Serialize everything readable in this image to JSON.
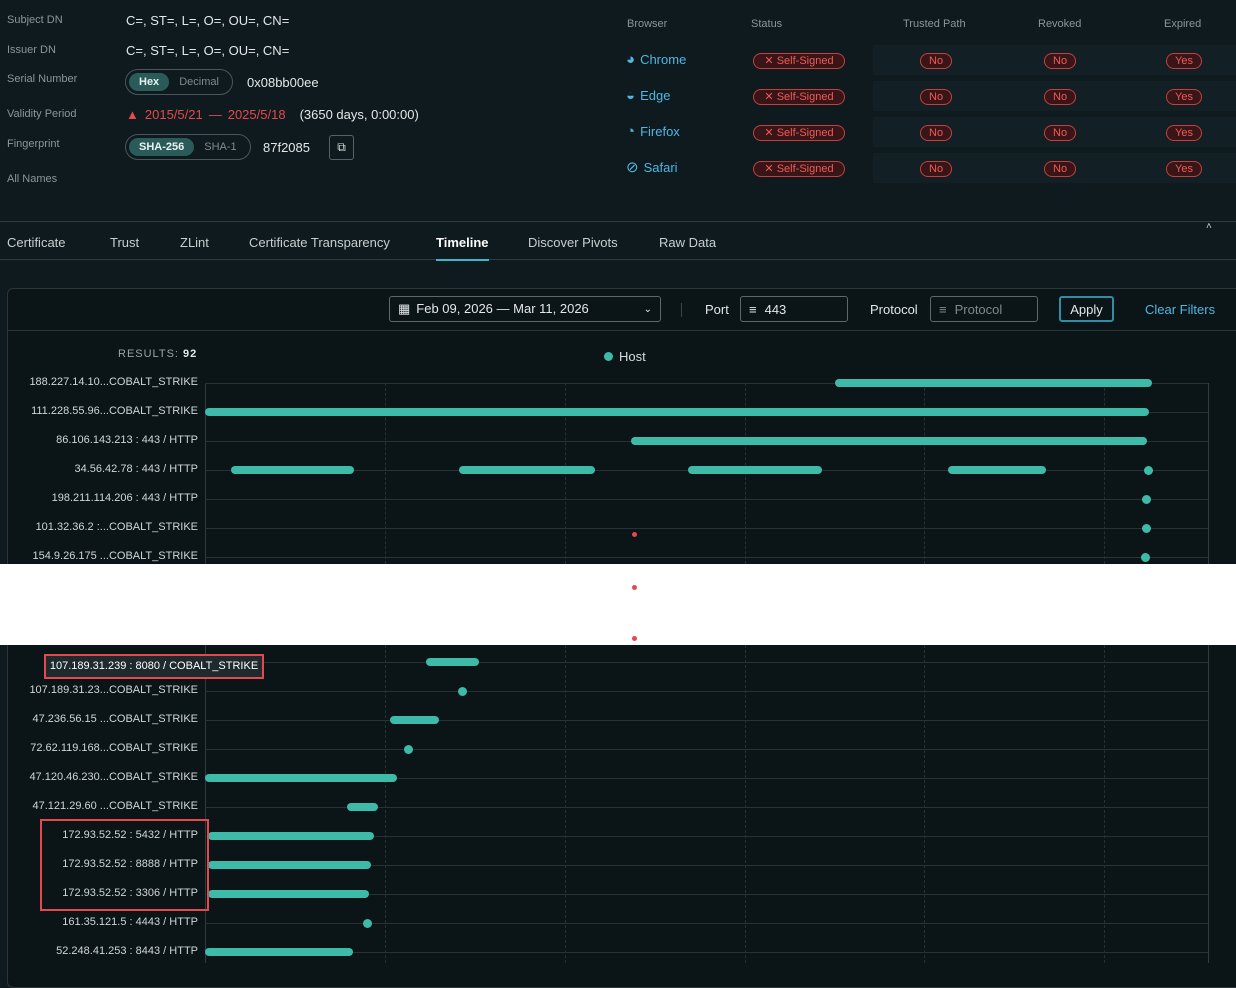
{
  "certificate": {
    "fields": [
      {
        "label": "Subject DN",
        "value": "C=, ST=, L=, O=, OU=, CN="
      },
      {
        "label": "Issuer DN",
        "value": "C=, ST=, L=, O=, OU=, CN="
      },
      {
        "label": "Serial Number",
        "value": "0x08bb00ee",
        "toggle": [
          "Hex",
          "Decimal"
        ],
        "selected": "Hex"
      },
      {
        "label": "Validity Period",
        "start": "2015/5/21",
        "separator": "—",
        "end": "2025/5/18",
        "duration": "(3650 days, 0:00:00)",
        "icon": "warning-triangle-icon"
      },
      {
        "label": "Fingerprint",
        "value": "87f2085",
        "toggle": [
          "SHA-256",
          "SHA-1"
        ],
        "selected": "SHA-256",
        "copy_icon": "copy-icon"
      },
      {
        "label": "All Names"
      }
    ]
  },
  "trust": {
    "headers": [
      "Browser",
      "Status",
      "Trusted Path",
      "Revoked",
      "Expired"
    ],
    "rows": [
      {
        "browser": "Chrome",
        "icon": "chrome-icon",
        "status": "Self-Signed",
        "trusted_path": "No",
        "revoked": "No",
        "expired": "Yes"
      },
      {
        "browser": "Edge",
        "icon": "edge-icon",
        "status": "Self-Signed",
        "trusted_path": "No",
        "revoked": "No",
        "expired": "Yes"
      },
      {
        "browser": "Firefox",
        "icon": "firefox-icon",
        "status": "Self-Signed",
        "trusted_path": "No",
        "revoked": "No",
        "expired": "Yes"
      },
      {
        "browser": "Safari",
        "icon": "safari-icon",
        "status": "Self-Signed",
        "trusted_path": "No",
        "revoked": "No",
        "expired": "Yes"
      }
    ],
    "status_icon": "✕"
  },
  "tabs": [
    {
      "label": "Certificate"
    },
    {
      "label": "Trust"
    },
    {
      "label": "ZLint"
    },
    {
      "label": "Certificate Transparency"
    },
    {
      "label": "Timeline",
      "active": true
    },
    {
      "label": "Discover Pivots"
    },
    {
      "label": "Raw Data"
    }
  ],
  "filters": {
    "date_range": "Feb 09, 2026 — Mar 11, 2026",
    "port_label": "Port",
    "port_value": "443",
    "protocol_label": "Protocol",
    "protocol_placeholder": "Protocol",
    "apply": "Apply",
    "clear": "Clear Filters"
  },
  "results": {
    "label": "RESULTS:",
    "count": "92"
  },
  "colors": {
    "accent": "#3dbaa8",
    "danger": "#e5484d",
    "link": "#4fb7e3"
  },
  "chart_data": {
    "type": "timeline",
    "legend": [
      {
        "name": "Host",
        "color": "#3dbaa8"
      }
    ],
    "legend_placement": "top-center",
    "x_range": [
      "2026-02-09T00:00",
      "2026-03-11T00:00"
    ],
    "grid": true,
    "tooltip": "107.189.31.239 : 8080 / COBALT_STRIKE",
    "markers": [
      {
        "t": "2026-02-21T20:00",
        "color": "#e5484d"
      }
    ],
    "rows_top": [
      {
        "label": "188.227.14.10...COBALT_STRIKE",
        "spans": [
          [
            "2026-02-27T20:00",
            "2026-03-09T08:00"
          ]
        ]
      },
      {
        "label": "111.228.55.96...COBALT_STRIKE",
        "spans": [
          [
            "2026-02-09T00:00",
            "2026-03-09T06:00"
          ]
        ]
      },
      {
        "label": "86.106.143.213 : 443 / HTTP",
        "spans": [
          [
            "2026-02-21T18:00",
            "2026-03-09T04:00"
          ]
        ]
      },
      {
        "label": "34.56.42.78 : 443 / HTTP",
        "spans": [
          [
            "2026-02-09T19:00",
            "2026-02-13T11:00"
          ],
          [
            "2026-02-16T14:00",
            "2026-02-20T16:00"
          ],
          [
            "2026-02-23T11:00",
            "2026-02-27T11:00"
          ],
          [
            "2026-03-03T05:30",
            "2026-03-06T04:00"
          ],
          [
            "2026-03-09T05:00",
            "2026-03-09T05:00"
          ]
        ]
      },
      {
        "label": "198.211.114.206 : 443 / HTTP",
        "spans": [
          [
            "2026-03-09T04:00",
            "2026-03-09T04:00"
          ]
        ]
      },
      {
        "label": "101.32.36.2 :...COBALT_STRIKE",
        "spans": [
          [
            "2026-03-09T04:00",
            "2026-03-09T04:00"
          ]
        ]
      },
      {
        "label": "154.9.26.175 ...COBALT_STRIKE",
        "spans": [
          [
            "2026-03-09T03:00",
            "2026-03-09T03:00"
          ]
        ]
      }
    ],
    "rows_bottom": [
      {
        "label": "",
        "spans": [
          [
            "2026-02-15T15:00",
            "2026-02-17T05:00"
          ]
        ]
      },
      {
        "label": "107.189.31.23...COBALT_STRIKE",
        "spans": [
          [
            "2026-02-16T17:00",
            "2026-02-16T17:00"
          ]
        ]
      },
      {
        "label": "47.236.56.15 ...COBALT_STRIKE",
        "spans": [
          [
            "2026-02-14T13:00",
            "2026-02-16T00:00"
          ]
        ]
      },
      {
        "label": "72.62.119.168...COBALT_STRIKE",
        "spans": [
          [
            "2026-02-15T02:00",
            "2026-02-15T02:00"
          ]
        ]
      },
      {
        "label": "47.120.46.230...COBALT_STRIKE",
        "spans": [
          [
            "2026-02-09T00:00",
            "2026-02-14T18:00"
          ]
        ]
      },
      {
        "label": "47.121.29.60 ...COBALT_STRIKE",
        "spans": [
          [
            "2026-02-13T06:00",
            "2026-02-14T04:00"
          ]
        ]
      },
      {
        "label": "172.93.52.52 : 5432 / HTTP",
        "spans": [
          [
            "2026-02-09T02:00",
            "2026-02-14T01:00"
          ]
        ]
      },
      {
        "label": "172.93.52.52 : 8888 / HTTP",
        "spans": [
          [
            "2026-02-09T02:00",
            "2026-02-13T23:00"
          ]
        ]
      },
      {
        "label": "172.93.52.52 : 3306 / HTTP",
        "spans": [
          [
            "2026-02-09T02:00",
            "2026-02-13T22:00"
          ]
        ]
      },
      {
        "label": "161.35.121.5 : 4443 / HTTP",
        "spans": [
          [
            "2026-02-13T21:00",
            "2026-02-13T21:00"
          ]
        ]
      },
      {
        "label": "52.248.41.253 : 8443 / HTTP",
        "spans": [
          [
            "2026-02-09T00:00",
            "2026-02-13T10:00"
          ]
        ]
      }
    ]
  }
}
